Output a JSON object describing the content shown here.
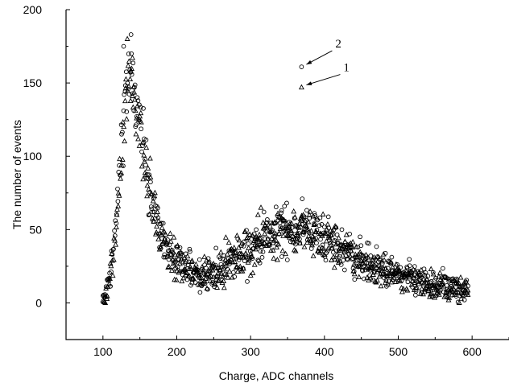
{
  "chart_data": {
    "type": "scatter",
    "title": "",
    "xlabel": "Charge, ADC channels",
    "ylabel": "The number of events",
    "xlim": [
      50,
      650
    ],
    "ylim": [
      -25,
      200
    ],
    "x_ticks": [
      100,
      200,
      300,
      400,
      500,
      600
    ],
    "y_ticks": [
      0,
      50,
      100,
      150,
      200
    ],
    "grid": false,
    "x_range": [
      100,
      595
    ],
    "series": [
      {
        "marker": "circle",
        "peak_points": [
          {
            "x": 138,
            "y": 183
          },
          {
            "x": 128,
            "y": 175
          },
          {
            "x": 370,
            "y": 71
          },
          {
            "x": 318,
            "y": 62
          },
          {
            "x": 342,
            "y": 63
          }
        ],
        "profile": {
          "x": [
            100,
            105,
            110,
            115,
            120,
            125,
            130,
            135,
            140,
            145,
            150,
            155,
            160,
            165,
            170,
            175,
            180,
            190,
            200,
            210,
            220,
            230,
            240,
            250,
            260,
            270,
            280,
            290,
            300,
            310,
            320,
            330,
            340,
            350,
            360,
            370,
            380,
            390,
            400,
            410,
            420,
            430,
            440,
            450,
            460,
            470,
            480,
            490,
            500,
            510,
            520,
            530,
            540,
            550,
            560,
            570,
            580,
            590,
            595
          ],
          "y": [
            2,
            8,
            20,
            40,
            70,
            110,
            145,
            152,
            148,
            135,
            120,
            105,
            90,
            75,
            62,
            52,
            45,
            35,
            28,
            24,
            22,
            20,
            20,
            22,
            24,
            27,
            30,
            33,
            37,
            42,
            46,
            48,
            50,
            51,
            51,
            50,
            49,
            47,
            44,
            41,
            38,
            35,
            32,
            29,
            27,
            25,
            23,
            21,
            19,
            17,
            16,
            15,
            13,
            12,
            11,
            10,
            10,
            9,
            8
          ]
        }
      },
      {
        "marker": "triangle",
        "peak_points": [
          {
            "x": 133,
            "y": 180
          },
          {
            "x": 140,
            "y": 167
          },
          {
            "x": 385,
            "y": 59
          },
          {
            "x": 310,
            "y": 60
          }
        ],
        "profile": {
          "x": [
            100,
            105,
            110,
            115,
            120,
            125,
            130,
            135,
            140,
            145,
            150,
            155,
            160,
            165,
            170,
            175,
            180,
            190,
            200,
            210,
            220,
            230,
            240,
            250,
            260,
            270,
            280,
            290,
            300,
            310,
            320,
            330,
            340,
            350,
            360,
            370,
            380,
            390,
            400,
            410,
            420,
            430,
            440,
            450,
            460,
            470,
            480,
            490,
            500,
            510,
            520,
            530,
            540,
            550,
            560,
            570,
            580,
            590,
            595
          ],
          "y": [
            1,
            6,
            16,
            35,
            64,
            104,
            140,
            150,
            147,
            134,
            118,
            102,
            87,
            72,
            60,
            50,
            43,
            33,
            27,
            23,
            21,
            20,
            20,
            22,
            24,
            27,
            30,
            33,
            37,
            42,
            45,
            47,
            49,
            50,
            50,
            49,
            48,
            46,
            43,
            40,
            37,
            34,
            31,
            28,
            26,
            24,
            22,
            20,
            18,
            17,
            15,
            14,
            13,
            12,
            11,
            10,
            9,
            8,
            7
          ]
        }
      }
    ],
    "annotations": [
      {
        "text": "2",
        "marker": "circle",
        "x": 369,
        "y": 161
      },
      {
        "text": "1",
        "marker": "triangle",
        "x": 369,
        "y": 147
      }
    ]
  }
}
